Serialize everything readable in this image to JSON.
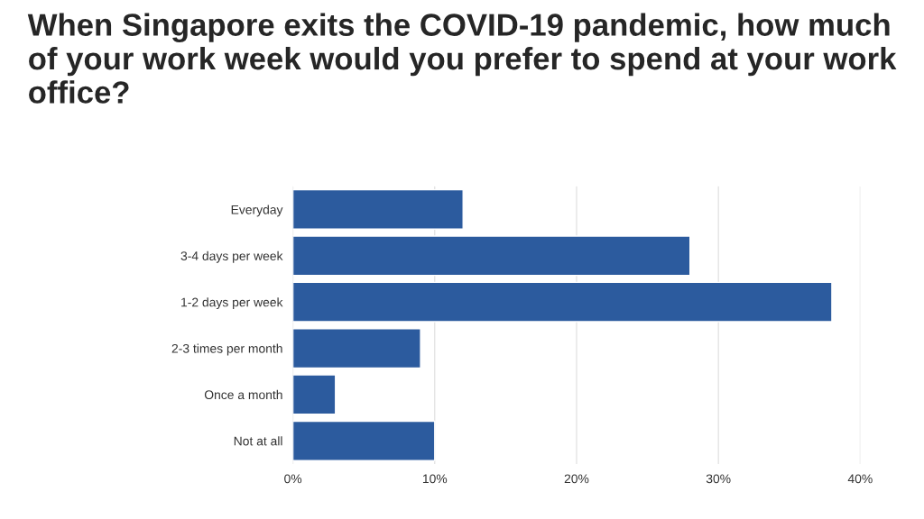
{
  "chart_data": {
    "type": "bar",
    "orientation": "horizontal",
    "title": "When Singapore exits the COVID-19 pandemic, how much of your work week would you prefer to spend at your work office?",
    "categories": [
      "Everyday",
      "3-4 days per week",
      "1-2 days per week",
      "2-3 times per month",
      "Once a month",
      "Not at all"
    ],
    "values": [
      12,
      28,
      38,
      9,
      3,
      10
    ],
    "color": "#2c5b9e",
    "xlim": [
      0,
      40
    ],
    "xticks": [
      {
        "value": 0,
        "label": "0%"
      },
      {
        "value": 10,
        "label": "10%"
      },
      {
        "value": 20,
        "label": "20%"
      },
      {
        "value": 30,
        "label": "30%"
      },
      {
        "value": 40,
        "label": "40%"
      }
    ],
    "grid": "x",
    "legend": false
  }
}
